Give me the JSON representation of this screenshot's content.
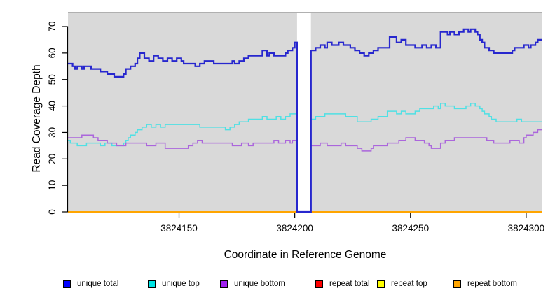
{
  "chart_data": {
    "type": "line",
    "subtype": "step-after-coverage-plot",
    "title": "",
    "xlabel": "Coordinate in Reference Genome",
    "ylabel": "Read Coverage Depth",
    "xlim": [
      3824102,
      3824307
    ],
    "ylim": [
      0,
      75
    ],
    "x_ticks": [
      3824150,
      3824200,
      3824250,
      3824300
    ],
    "y_ticks": [
      0,
      10,
      20,
      30,
      40,
      50,
      60,
      70
    ],
    "grid": false,
    "plot_background": "#d9d9d9",
    "plot_border_color": "#b0b0b0",
    "no_data_gap": {
      "start": 3824201,
      "end": 3824207,
      "fill": "#ffffff"
    },
    "legend_position": "bottom-horizontal",
    "series": [
      {
        "name": "unique total",
        "color": "#2727ce",
        "legend_color": "#0000ff",
        "line_width": 2.2,
        "points": [
          [
            3824102,
            56
          ],
          [
            3824104,
            55
          ],
          [
            3824105,
            54
          ],
          [
            3824106,
            55
          ],
          [
            3824108,
            54
          ],
          [
            3824109,
            55
          ],
          [
            3824112,
            54
          ],
          [
            3824116,
            53
          ],
          [
            3824119,
            52
          ],
          [
            3824122,
            51
          ],
          [
            3824126,
            52
          ],
          [
            3824127,
            54
          ],
          [
            3824129,
            55
          ],
          [
            3824131,
            56
          ],
          [
            3824132,
            58
          ],
          [
            3824133,
            60
          ],
          [
            3824135,
            58
          ],
          [
            3824137,
            57
          ],
          [
            3824139,
            59
          ],
          [
            3824141,
            58
          ],
          [
            3824143,
            57
          ],
          [
            3824145,
            58
          ],
          [
            3824147,
            57
          ],
          [
            3824149,
            58
          ],
          [
            3824151,
            57
          ],
          [
            3824152,
            56
          ],
          [
            3824157,
            55
          ],
          [
            3824159,
            56
          ],
          [
            3824161,
            57
          ],
          [
            3824165,
            56
          ],
          [
            3824173,
            57
          ],
          [
            3824174,
            56
          ],
          [
            3824176,
            57
          ],
          [
            3824178,
            58
          ],
          [
            3824180,
            59
          ],
          [
            3824186,
            61
          ],
          [
            3824188,
            59
          ],
          [
            3824189,
            60
          ],
          [
            3824191,
            59
          ],
          [
            3824196,
            60
          ],
          [
            3824197,
            61
          ],
          [
            3824199,
            62
          ],
          [
            3824200,
            64
          ],
          [
            3824201,
            0
          ],
          [
            3824207,
            61
          ],
          [
            3824209,
            62
          ],
          [
            3824211,
            63
          ],
          [
            3824213,
            62
          ],
          [
            3824214,
            64
          ],
          [
            3824216,
            63
          ],
          [
            3824219,
            64
          ],
          [
            3824221,
            63
          ],
          [
            3824224,
            62
          ],
          [
            3824226,
            61
          ],
          [
            3824228,
            60
          ],
          [
            3824230,
            59
          ],
          [
            3824232,
            60
          ],
          [
            3824234,
            61
          ],
          [
            3824236,
            62
          ],
          [
            3824241,
            66
          ],
          [
            3824244,
            64
          ],
          [
            3824246,
            65
          ],
          [
            3824248,
            63
          ],
          [
            3824252,
            62
          ],
          [
            3824255,
            63
          ],
          [
            3824257,
            62
          ],
          [
            3824259,
            63
          ],
          [
            3824261,
            62
          ],
          [
            3824263,
            68
          ],
          [
            3824266,
            67
          ],
          [
            3824267,
            68
          ],
          [
            3824269,
            67
          ],
          [
            3824271,
            68
          ],
          [
            3824273,
            69
          ],
          [
            3824275,
            68
          ],
          [
            3824276,
            69
          ],
          [
            3824278,
            68
          ],
          [
            3824279,
            67
          ],
          [
            3824280,
            65
          ],
          [
            3824281,
            64
          ],
          [
            3824282,
            62
          ],
          [
            3824284,
            61
          ],
          [
            3824286,
            60
          ],
          [
            3824293,
            60
          ],
          [
            3824294,
            61
          ],
          [
            3824295,
            62
          ],
          [
            3824299,
            63
          ],
          [
            3824301,
            62
          ],
          [
            3824302,
            63
          ],
          [
            3824304,
            64
          ],
          [
            3824305,
            65
          ]
        ]
      },
      {
        "name": "unique top",
        "color": "#4fe0e4",
        "legend_color": "#00e5e5",
        "line_width": 1.5,
        "points": [
          [
            3824102,
            27
          ],
          [
            3824103,
            26
          ],
          [
            3824106,
            25
          ],
          [
            3824110,
            26
          ],
          [
            3824116,
            25
          ],
          [
            3824118,
            26
          ],
          [
            3824121,
            25
          ],
          [
            3824126,
            26
          ],
          [
            3824127,
            27
          ],
          [
            3824128,
            28
          ],
          [
            3824129,
            29
          ],
          [
            3824131,
            30
          ],
          [
            3824132,
            31
          ],
          [
            3824134,
            32
          ],
          [
            3824136,
            33
          ],
          [
            3824138,
            32
          ],
          [
            3824140,
            33
          ],
          [
            3824142,
            32
          ],
          [
            3824144,
            33
          ],
          [
            3824158,
            33
          ],
          [
            3824159,
            32
          ],
          [
            3824168,
            32
          ],
          [
            3824170,
            31
          ],
          [
            3824172,
            32
          ],
          [
            3824174,
            33
          ],
          [
            3824176,
            34
          ],
          [
            3824180,
            35
          ],
          [
            3824186,
            36
          ],
          [
            3824188,
            35
          ],
          [
            3824192,
            36
          ],
          [
            3824194,
            35
          ],
          [
            3824196,
            36
          ],
          [
            3824198,
            37
          ],
          [
            3824201,
            0
          ],
          [
            3824207,
            35
          ],
          [
            3824209,
            36
          ],
          [
            3824213,
            37
          ],
          [
            3824222,
            36
          ],
          [
            3824227,
            34
          ],
          [
            3824233,
            35
          ],
          [
            3824236,
            36
          ],
          [
            3824240,
            38
          ],
          [
            3824244,
            37
          ],
          [
            3824246,
            38
          ],
          [
            3824248,
            37
          ],
          [
            3824252,
            38
          ],
          [
            3824254,
            39
          ],
          [
            3824260,
            40
          ],
          [
            3824262,
            39
          ],
          [
            3824263,
            41
          ],
          [
            3824265,
            40
          ],
          [
            3824269,
            39
          ],
          [
            3824274,
            40
          ],
          [
            3824276,
            41
          ],
          [
            3824278,
            40
          ],
          [
            3824280,
            39
          ],
          [
            3824281,
            38
          ],
          [
            3824282,
            37
          ],
          [
            3824284,
            36
          ],
          [
            3824285,
            35
          ],
          [
            3824287,
            34
          ],
          [
            3824295,
            34
          ],
          [
            3824296,
            35
          ],
          [
            3824298,
            34
          ]
        ]
      },
      {
        "name": "unique bottom",
        "color": "#ab66dc",
        "legend_color": "#a020f0",
        "line_width": 1.5,
        "points": [
          [
            3824102,
            28
          ],
          [
            3824108,
            29
          ],
          [
            3824113,
            28
          ],
          [
            3824115,
            27
          ],
          [
            3824119,
            26
          ],
          [
            3824123,
            25
          ],
          [
            3824127,
            26
          ],
          [
            3824136,
            25
          ],
          [
            3824140,
            26
          ],
          [
            3824144,
            24
          ],
          [
            3824154,
            25
          ],
          [
            3824156,
            26
          ],
          [
            3824158,
            27
          ],
          [
            3824160,
            26
          ],
          [
            3824173,
            25
          ],
          [
            3824177,
            26
          ],
          [
            3824180,
            25
          ],
          [
            3824182,
            26
          ],
          [
            3824191,
            27
          ],
          [
            3824193,
            26
          ],
          [
            3824196,
            27
          ],
          [
            3824198,
            26
          ],
          [
            3824199,
            27
          ],
          [
            3824201,
            0
          ],
          [
            3824207,
            25
          ],
          [
            3824211,
            26
          ],
          [
            3824214,
            25
          ],
          [
            3824220,
            26
          ],
          [
            3824222,
            25
          ],
          [
            3824227,
            24
          ],
          [
            3824229,
            23
          ],
          [
            3824233,
            24
          ],
          [
            3824234,
            25
          ],
          [
            3824240,
            26
          ],
          [
            3824245,
            27
          ],
          [
            3824248,
            28
          ],
          [
            3824252,
            27
          ],
          [
            3824256,
            26
          ],
          [
            3824258,
            25
          ],
          [
            3824259,
            24
          ],
          [
            3824263,
            26
          ],
          [
            3824265,
            27
          ],
          [
            3824269,
            28
          ],
          [
            3824283,
            27
          ],
          [
            3824286,
            26
          ],
          [
            3824293,
            27
          ],
          [
            3824297,
            26
          ],
          [
            3824299,
            28
          ],
          [
            3824300,
            29
          ],
          [
            3824303,
            30
          ],
          [
            3824305,
            31
          ]
        ]
      },
      {
        "name": "repeat total",
        "color": "#ff0000",
        "legend_color": "#ff0000",
        "line_width": 1.5,
        "points": [
          [
            3824102,
            0
          ]
        ]
      },
      {
        "name": "repeat top",
        "color": "#ffff00",
        "legend_color": "#ffff00",
        "line_width": 1.5,
        "points": [
          [
            3824102,
            0
          ]
        ]
      },
      {
        "name": "repeat bottom",
        "color": "#ffa500",
        "legend_color": "#ffa500",
        "line_width": 2,
        "points": [
          [
            3824102,
            0
          ]
        ]
      }
    ],
    "legend": [
      {
        "label": "unique total",
        "color": "#0000ff"
      },
      {
        "label": "unique top",
        "color": "#00e5e5"
      },
      {
        "label": "unique bottom",
        "color": "#a020f0"
      },
      {
        "label": "repeat total",
        "color": "#ff0000"
      },
      {
        "label": "repeat top",
        "color": "#ffff00"
      },
      {
        "label": "repeat bottom",
        "color": "#ffa500"
      }
    ]
  }
}
